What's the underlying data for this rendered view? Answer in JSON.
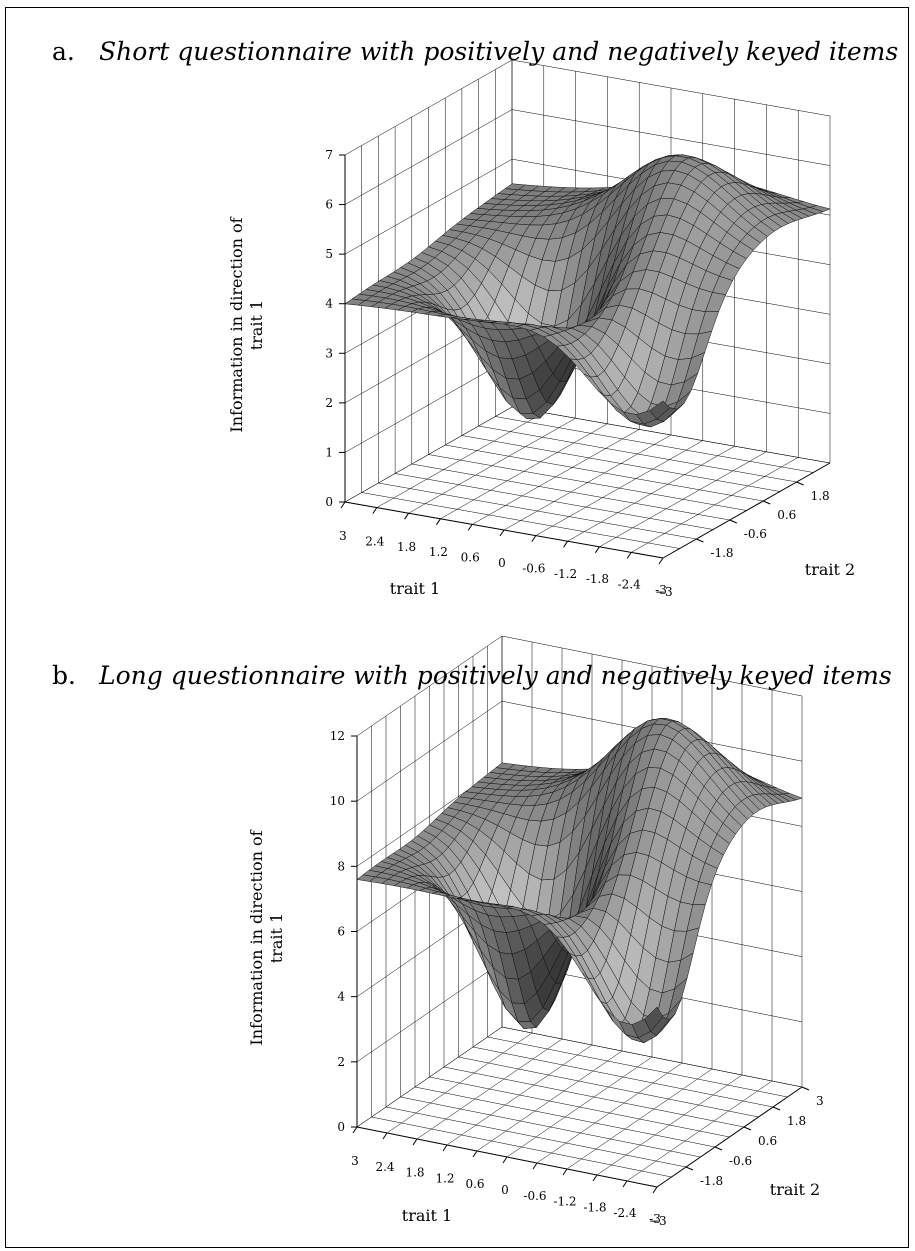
{
  "panels": [
    {
      "letter": "a.",
      "title": "Short questionnaire with positively and negatively keyed items"
    },
    {
      "letter": "b.",
      "title": "Long questionnaire with positively and negatively keyed items"
    }
  ],
  "chart_data": [
    {
      "type": "surface",
      "title": "Short questionnaire with positively and negatively keyed items",
      "zlabel": "Information in direction of trait 1",
      "xlabel": "trait 1",
      "ylabel": "trait 2",
      "zlim": [
        0,
        7
      ],
      "z_ticks": [
        "0",
        "1",
        "2",
        "3",
        "4",
        "5",
        "6",
        "7"
      ],
      "trait1_ticks": [
        "3",
        "2.4",
        "1.8",
        "1.2",
        "0.6",
        "0",
        "-0.6",
        "-1.2",
        "-1.8",
        "-2.4",
        "-3"
      ],
      "trait2_ticks": [
        "-1.8",
        "-0.6",
        "0.6",
        "1.8"
      ],
      "trait1_range": [
        -3,
        3
      ],
      "trait2_range": [
        -3,
        3
      ],
      "surface_features": {
        "corner_value_trait1_3_trait2_-3": 4,
        "corner_value_trait1_-3_trait2_3": 5,
        "peak_value": 6.6,
        "minimum_values": [
          0.8,
          1.5
        ],
        "grid": true
      }
    },
    {
      "type": "surface",
      "title": "Long questionnaire with positively and negatively keyed items",
      "zlabel": "Information in direction of trait 1",
      "xlabel": "trait 1",
      "ylabel": "trait 2",
      "zlim": [
        0,
        12
      ],
      "z_ticks": [
        "0",
        "2",
        "4",
        "6",
        "8",
        "10",
        "12"
      ],
      "trait1_ticks": [
        "3",
        "2.4",
        "1.8",
        "1.2",
        "0.6",
        "0",
        "-0.6",
        "-1.2",
        "-1.8",
        "-2.4",
        "-3"
      ],
      "trait2_ticks": [
        "-1.8",
        "-0.6",
        "0.6",
        "1.8",
        "3"
      ],
      "trait1_range": [
        -3,
        3
      ],
      "trait2_range": [
        -3,
        3
      ],
      "surface_features": {
        "corner_value_trait1_3_trait2_-3": 7.6,
        "corner_value_trait1_-3_trait2_3": 8.6,
        "peak_value": 12,
        "minimum_values": [
          1.5,
          2.3
        ],
        "grid": true
      }
    }
  ]
}
